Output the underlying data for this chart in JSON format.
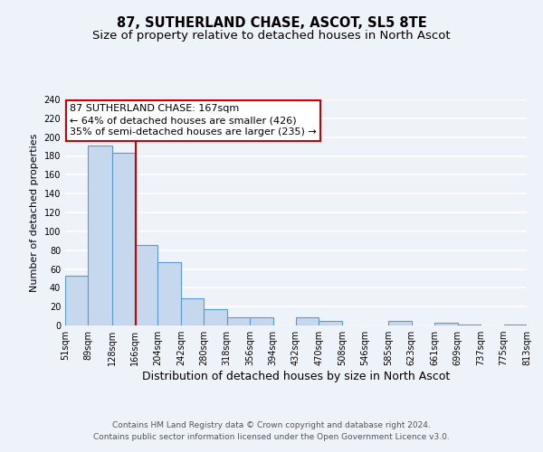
{
  "title": "87, SUTHERLAND CHASE, ASCOT, SL5 8TE",
  "subtitle": "Size of property relative to detached houses in North Ascot",
  "xlabel": "Distribution of detached houses by size in North Ascot",
  "ylabel": "Number of detached properties",
  "bin_edges": [
    51,
    89,
    128,
    166,
    204,
    242,
    280,
    318,
    356,
    394,
    432,
    470,
    508,
    546,
    585,
    623,
    661,
    699,
    737,
    775,
    813
  ],
  "counts": [
    53,
    191,
    183,
    85,
    67,
    29,
    17,
    9,
    9,
    0,
    9,
    5,
    0,
    0,
    5,
    0,
    3,
    1,
    0,
    1
  ],
  "bar_color": "#c5d8ed",
  "bar_edge_color": "#5b9bd5",
  "property_value": 167,
  "red_line_color": "#cc0000",
  "annotation_line1": "87 SUTHERLAND CHASE: 167sqm",
  "annotation_line2": "← 64% of detached houses are smaller (426)",
  "annotation_line3": "35% of semi-detached houses are larger (235) →",
  "annotation_box_color": "#ffffff",
  "annotation_box_edge_color": "#cc0000",
  "ylim": [
    0,
    240
  ],
  "yticks": [
    0,
    20,
    40,
    60,
    80,
    100,
    120,
    140,
    160,
    180,
    200,
    220,
    240
  ],
  "footer_line1": "Contains HM Land Registry data © Crown copyright and database right 2024.",
  "footer_line2": "Contains public sector information licensed under the Open Government Licence v3.0.",
  "background_color": "#eef2f9",
  "grid_color": "#ffffff",
  "title_fontsize": 10.5,
  "subtitle_fontsize": 9.5,
  "xlabel_fontsize": 9,
  "ylabel_fontsize": 8,
  "tick_fontsize": 7,
  "annotation_fontsize": 8,
  "footer_fontsize": 6.5
}
